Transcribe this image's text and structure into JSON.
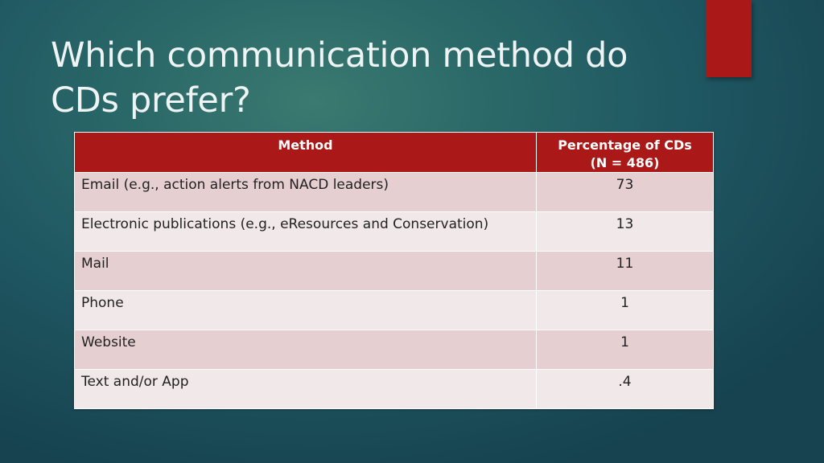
{
  "slide": {
    "title_line1": "Which communication method do",
    "title_line2": "CDs prefer?"
  },
  "table": {
    "header_method": "Method",
    "header_pct_line1": "Percentage of CDs",
    "header_pct_line2": "(N = 486)",
    "rows": [
      {
        "method": "Email (e.g., action alerts from NACD leaders)",
        "value": "73"
      },
      {
        "method": "Electronic publications (e.g., eResources and Conservation)",
        "value": "13"
      },
      {
        "method": "Mail",
        "value": "11"
      },
      {
        "method": "Phone",
        "value": "1"
      },
      {
        "method": "Website",
        "value": "1"
      },
      {
        "method": "Text and/or App",
        "value": ".4"
      }
    ]
  },
  "colors": {
    "accent": "#aa1818",
    "row_odd": "#e6cfd1",
    "row_even": "#f1e8e9"
  }
}
